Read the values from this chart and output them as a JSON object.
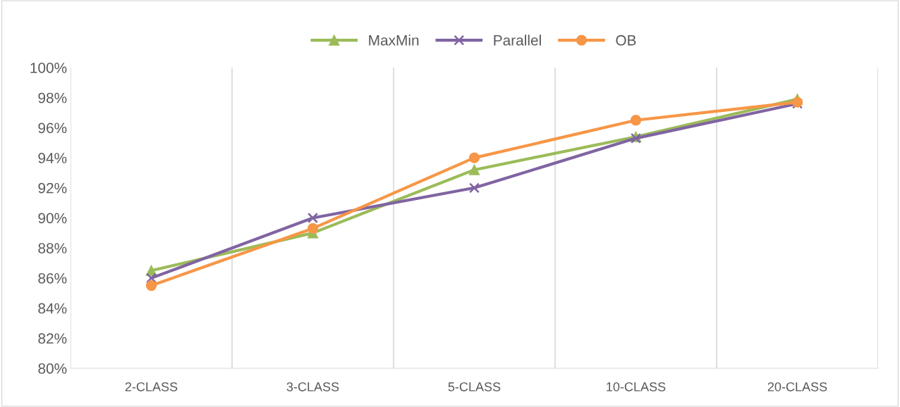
{
  "chart_data": {
    "type": "line",
    "categories": [
      "2-CLASS",
      "3-CLASS",
      "5-CLASS",
      "10-CLASS",
      "20-CLASS"
    ],
    "series": [
      {
        "name": "MaxMin",
        "color": "#9bbb59",
        "marker": "triangle",
        "values": [
          86.5,
          89.0,
          93.2,
          95.4,
          97.9
        ]
      },
      {
        "name": "Parallel",
        "color": "#8064a2",
        "marker": "cross",
        "values": [
          86.0,
          90.0,
          92.0,
          95.3,
          97.6
        ]
      },
      {
        "name": "OB",
        "color": "#f79646",
        "marker": "circle",
        "values": [
          85.5,
          89.3,
          94.0,
          96.5,
          97.7
        ]
      }
    ],
    "ylim": [
      80,
      100
    ],
    "yticks": [
      {
        "value": 80,
        "label": "80%"
      },
      {
        "value": 82,
        "label": "82%"
      },
      {
        "value": 84,
        "label": "84%"
      },
      {
        "value": 86,
        "label": "86%"
      },
      {
        "value": 88,
        "label": "88%"
      },
      {
        "value": 90,
        "label": "90%"
      },
      {
        "value": 92,
        "label": "92%"
      },
      {
        "value": 94,
        "label": "94%"
      },
      {
        "value": 96,
        "label": "96%"
      },
      {
        "value": 98,
        "label": "98%"
      },
      {
        "value": 100,
        "label": "100%"
      }
    ],
    "grid": "x",
    "legend": "top",
    "line_style": "solid"
  }
}
